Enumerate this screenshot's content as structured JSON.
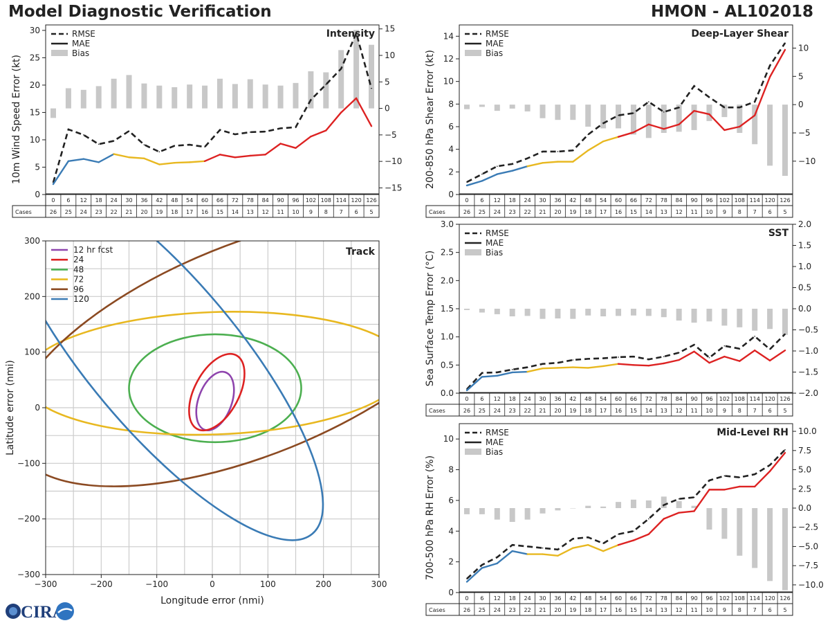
{
  "header": {
    "title": "Model Diagnostic Verification",
    "storm": "HMON - AL102018"
  },
  "logo": {
    "text": "CIRA"
  },
  "colors": {
    "rmse": "#222222",
    "bias": "#c8c8c8",
    "f12": "#3a7bb5",
    "f24_60": "#e8b820",
    "f66plus": "#dd2222"
  },
  "table": {
    "cases_label": "Cases",
    "hours": [
      "0",
      "6",
      "12",
      "18",
      "24",
      "30",
      "36",
      "42",
      "48",
      "54",
      "60",
      "66",
      "72",
      "78",
      "84",
      "90",
      "96",
      "102",
      "108",
      "114",
      "120",
      "126"
    ],
    "cases": [
      "26",
      "25",
      "24",
      "23",
      "22",
      "21",
      "20",
      "19",
      "18",
      "17",
      "16",
      "15",
      "14",
      "13",
      "12",
      "11",
      "10",
      "9",
      "8",
      "7",
      "6",
      "5"
    ]
  },
  "chart_data": [
    {
      "id": "intensity",
      "type": "line",
      "title": "Intensity",
      "ylabel": "10m Wind Speed Error (kt)",
      "ylim": [
        0,
        31
      ],
      "yticks": [
        0,
        5,
        10,
        15,
        20,
        25,
        30
      ],
      "y2lim": [
        -16.25,
        15.75
      ],
      "y2ticks": [
        -15,
        -10,
        -5,
        0,
        5,
        10,
        15
      ],
      "legend": [
        "RMSE",
        "MAE",
        "Bias"
      ],
      "x": [
        0,
        6,
        12,
        18,
        24,
        30,
        36,
        42,
        48,
        54,
        60,
        66,
        72,
        78,
        84,
        90,
        96,
        102,
        108,
        114,
        120,
        126
      ],
      "rmse": [
        2.2,
        11.9,
        10.9,
        9.2,
        9.8,
        11.6,
        9.1,
        7.8,
        8.9,
        9.1,
        8.7,
        11.8,
        11.0,
        11.4,
        11.5,
        12.1,
        12.3,
        17.3,
        20.1,
        23.0,
        29.5,
        19.4
      ],
      "mae": [
        1.9,
        6.1,
        6.5,
        5.9,
        7.4,
        6.8,
        6.6,
        5.5,
        5.8,
        5.9,
        6.1,
        7.3,
        6.8,
        7.1,
        7.3,
        9.3,
        8.5,
        10.6,
        11.7,
        15.0,
        17.6,
        12.5
      ],
      "bias": [
        -1.8,
        3.8,
        3.5,
        4.2,
        5.6,
        6.3,
        4.7,
        4.3,
        4.0,
        4.5,
        4.3,
        5.6,
        4.6,
        5.5,
        4.5,
        4.3,
        4.8,
        7.0,
        6.8,
        11.0,
        14.8,
        12.0
      ]
    },
    {
      "id": "shear",
      "type": "line",
      "title": "Deep-Layer Shear",
      "ylabel": "200-850 hPa Shear Error (kt)",
      "ylim": [
        0,
        15
      ],
      "yticks": [
        0,
        2,
        4,
        6,
        8,
        10,
        12,
        14
      ],
      "y2lim": [
        -15.9,
        14.1
      ],
      "y2ticks": [
        -10,
        -5,
        0,
        5,
        10
      ],
      "legend": [
        "RMSE",
        "MAE",
        "Bias"
      ],
      "x": [
        0,
        6,
        12,
        18,
        24,
        30,
        36,
        42,
        48,
        54,
        60,
        66,
        72,
        78,
        84,
        90,
        96,
        102,
        108,
        114,
        120,
        126
      ],
      "rmse": [
        1.1,
        1.8,
        2.5,
        2.7,
        3.2,
        3.8,
        3.8,
        3.9,
        5.3,
        6.3,
        7.0,
        7.2,
        8.2,
        7.3,
        7.7,
        9.6,
        8.6,
        7.7,
        7.7,
        8.2,
        11.4,
        13.4
      ],
      "mae": [
        0.8,
        1.2,
        1.8,
        2.1,
        2.5,
        2.8,
        2.9,
        2.9,
        3.9,
        4.7,
        5.1,
        5.5,
        6.2,
        5.8,
        6.2,
        7.4,
        7.1,
        5.7,
        6.0,
        7.0,
        10.4,
        12.8
      ],
      "bias": [
        -0.8,
        -0.4,
        -1.1,
        -0.7,
        -1.2,
        -2.4,
        -2.7,
        -2.7,
        -3.9,
        -4.2,
        -4.2,
        -5.3,
        -5.9,
        -5.0,
        -4.8,
        -4.5,
        -2.9,
        -2.2,
        -5.0,
        -7.0,
        -10.8,
        -12.6
      ]
    },
    {
      "id": "sst",
      "type": "line",
      "title": "SST",
      "ylabel": "Sea Surface Temp Error (°C)",
      "ylim": [
        0,
        3
      ],
      "yticks": [
        0.0,
        0.5,
        1.0,
        1.5,
        2.0,
        2.5,
        3.0
      ],
      "y2lim": [
        -2.0,
        2.0
      ],
      "y2ticks": [
        -2.0,
        -1.5,
        -1.0,
        -0.5,
        0.0,
        0.5,
        1.0,
        1.5,
        2.0
      ],
      "legend": [
        "RMSE",
        "MAE",
        "Bias"
      ],
      "x": [
        0,
        6,
        12,
        18,
        24,
        30,
        36,
        42,
        48,
        54,
        60,
        66,
        72,
        78,
        84,
        90,
        96,
        102,
        108,
        114,
        120,
        126
      ],
      "rmse": [
        0.07,
        0.36,
        0.37,
        0.42,
        0.46,
        0.52,
        0.54,
        0.59,
        0.61,
        0.62,
        0.64,
        0.65,
        0.6,
        0.65,
        0.72,
        0.86,
        0.63,
        0.84,
        0.79,
        1.01,
        0.78,
        1.05
      ],
      "mae": [
        0.05,
        0.29,
        0.31,
        0.37,
        0.38,
        0.44,
        0.45,
        0.46,
        0.45,
        0.48,
        0.52,
        0.5,
        0.49,
        0.53,
        0.59,
        0.74,
        0.54,
        0.65,
        0.57,
        0.76,
        0.58,
        0.76
      ],
      "bias": [
        -0.03,
        -0.09,
        -0.13,
        -0.18,
        -0.17,
        -0.24,
        -0.23,
        -0.24,
        -0.16,
        -0.18,
        -0.17,
        -0.16,
        -0.17,
        -0.2,
        -0.28,
        -0.33,
        -0.3,
        -0.4,
        -0.44,
        -0.52,
        -0.48,
        -0.62
      ]
    },
    {
      "id": "rh",
      "type": "line",
      "title": "Mid-Level RH",
      "ylabel": "700-500 hPa RH Error (%)",
      "ylim": [
        0,
        11
      ],
      "yticks": [
        0,
        2,
        4,
        6,
        8,
        10
      ],
      "y2lim": [
        -11.0,
        11.0
      ],
      "y2ticks": [
        -10.0,
        -7.5,
        -5.0,
        -2.5,
        0.0,
        2.5,
        5.0,
        7.5,
        10.0
      ],
      "legend": [
        "RMSE",
        "MAE",
        "Bias"
      ],
      "x": [
        0,
        6,
        12,
        18,
        24,
        30,
        36,
        42,
        48,
        54,
        60,
        66,
        72,
        78,
        84,
        90,
        96,
        102,
        108,
        114,
        120,
        126
      ],
      "rmse": [
        0.9,
        1.8,
        2.3,
        3.1,
        3.0,
        2.9,
        2.8,
        3.5,
        3.6,
        3.2,
        3.8,
        4.0,
        4.8,
        5.7,
        6.1,
        6.2,
        7.3,
        7.6,
        7.5,
        7.7,
        8.3,
        9.3
      ],
      "mae": [
        0.7,
        1.6,
        1.9,
        2.7,
        2.5,
        2.5,
        2.4,
        2.9,
        3.1,
        2.7,
        3.1,
        3.4,
        3.8,
        4.8,
        5.2,
        5.3,
        6.7,
        6.7,
        6.9,
        6.9,
        7.9,
        9.1
      ],
      "bias": [
        -0.8,
        -0.8,
        -1.5,
        -1.8,
        -1.5,
        -0.7,
        -0.3,
        0.0,
        0.3,
        0.2,
        0.8,
        1.1,
        1.0,
        1.5,
        0.9,
        0.3,
        -2.8,
        -4.0,
        -6.2,
        -7.8,
        -9.5,
        -10.7
      ]
    },
    {
      "id": "track",
      "type": "ellipse",
      "title": "Track",
      "xlabel": "Longitude error (nmi)",
      "ylabel": "Latitude error (nmi)",
      "xlim": [
        -300,
        300
      ],
      "ylim": [
        -300,
        300
      ],
      "xticks": [
        -300,
        -200,
        -100,
        0,
        100,
        200,
        300
      ],
      "yticks": [
        -300,
        -200,
        -100,
        0,
        100,
        200,
        300
      ],
      "ellipses": [
        {
          "label": "12 hr fcst",
          "color": "#8e44ad",
          "cx": 5,
          "cy": 12,
          "rx": 55,
          "ry": 30,
          "angle_deg": -70
        },
        {
          "label": "24",
          "color": "#dd2222",
          "cx": 8,
          "cy": 28,
          "rx": 75,
          "ry": 40,
          "angle_deg": -62
        },
        {
          "label": "48",
          "color": "#4caf50",
          "cx": 5,
          "cy": 35,
          "rx": 155,
          "ry": 97,
          "angle_deg": 0
        },
        {
          "label": "72",
          "color": "#e8b820",
          "cx": 5,
          "cy": 62,
          "rx": 345,
          "ry": 110,
          "angle_deg": -2
        },
        {
          "label": "96",
          "color": "#8b4a22",
          "cx": 70,
          "cy": 105,
          "rx": 460,
          "ry": 190,
          "angle_deg": -22
        },
        {
          "label": "120",
          "color": "#3a7bb5",
          "cx": -90,
          "cy": 95,
          "rx": 420,
          "ry": 135,
          "angle_deg": 50
        }
      ]
    }
  ]
}
